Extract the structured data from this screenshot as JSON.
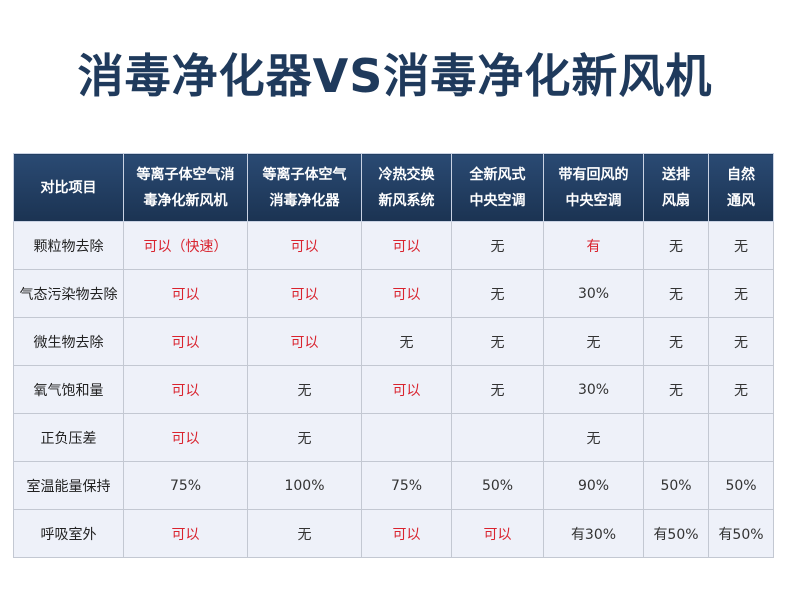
{
  "title": "消毒净化器VS消毒净化新风机",
  "table": {
    "header": [
      [
        "对比项目"
      ],
      [
        "等离子体空气消",
        "毒净化新风机"
      ],
      [
        "等离子体空气",
        "消毒净化器"
      ],
      [
        "冷热交换",
        "新风系统"
      ],
      [
        "全新风式",
        "中央空调"
      ],
      [
        "带有回风的",
        "中央空调"
      ],
      [
        "送排",
        "风扇"
      ],
      [
        "自然",
        "通风"
      ]
    ],
    "rows": [
      {
        "label": "颗粒物去除",
        "cells": [
          {
            "text": "可以（快速）",
            "color": "#d9232e"
          },
          {
            "text": "可以",
            "color": "#d9232e"
          },
          {
            "text": "可以",
            "color": "#d9232e"
          },
          {
            "text": "无",
            "color": "#333333"
          },
          {
            "text": "有",
            "color": "#d9232e"
          },
          {
            "text": "无",
            "color": "#333333"
          },
          {
            "text": "无",
            "color": "#333333"
          }
        ]
      },
      {
        "label": "气态污染物去除",
        "cells": [
          {
            "text": "可以",
            "color": "#d9232e"
          },
          {
            "text": "可以",
            "color": "#d9232e"
          },
          {
            "text": "可以",
            "color": "#d9232e"
          },
          {
            "text": "无",
            "color": "#333333"
          },
          {
            "text": "30%",
            "color": "#333333"
          },
          {
            "text": "无",
            "color": "#333333"
          },
          {
            "text": "无",
            "color": "#333333"
          }
        ]
      },
      {
        "label": "微生物去除",
        "cells": [
          {
            "text": "可以",
            "color": "#d9232e"
          },
          {
            "text": "可以",
            "color": "#d9232e"
          },
          {
            "text": "无",
            "color": "#333333"
          },
          {
            "text": "无",
            "color": "#333333"
          },
          {
            "text": "无",
            "color": "#333333"
          },
          {
            "text": "无",
            "color": "#333333"
          },
          {
            "text": "无",
            "color": "#333333"
          }
        ]
      },
      {
        "label": "氧气饱和量",
        "cells": [
          {
            "text": "可以",
            "color": "#d9232e"
          },
          {
            "text": "无",
            "color": "#333333"
          },
          {
            "text": "可以",
            "color": "#d9232e"
          },
          {
            "text": "无",
            "color": "#333333"
          },
          {
            "text": "30%",
            "color": "#333333"
          },
          {
            "text": "无",
            "color": "#333333"
          },
          {
            "text": "无",
            "color": "#333333"
          }
        ]
      },
      {
        "label": "正负压差",
        "cells": [
          {
            "text": "可以",
            "color": "#d9232e"
          },
          {
            "text": "无",
            "color": "#333333"
          },
          null,
          null,
          {
            "text": "无",
            "color": "#333333"
          },
          null,
          null
        ]
      },
      {
        "label": "室温能量保持",
        "cells": [
          {
            "text": "75%",
            "color": "#333333"
          },
          {
            "text": "100%",
            "color": "#333333"
          },
          {
            "text": "75%",
            "color": "#333333"
          },
          {
            "text": "50%",
            "color": "#333333"
          },
          {
            "text": "90%",
            "color": "#333333"
          },
          {
            "text": "50%",
            "color": "#333333"
          },
          {
            "text": "50%",
            "color": "#333333"
          }
        ]
      },
      {
        "label": "呼吸室外",
        "cells": [
          {
            "text": "可以",
            "color": "#d9232e"
          },
          {
            "text": "无",
            "color": "#333333"
          },
          {
            "text": "可以",
            "color": "#d9232e"
          },
          {
            "text": "可以",
            "color": "#d9232e"
          },
          {
            "text": "有30%",
            "color": "#333333"
          },
          {
            "text": "有50%",
            "color": "#333333"
          },
          {
            "text": "有50%",
            "color": "#333333"
          }
        ]
      }
    ]
  }
}
